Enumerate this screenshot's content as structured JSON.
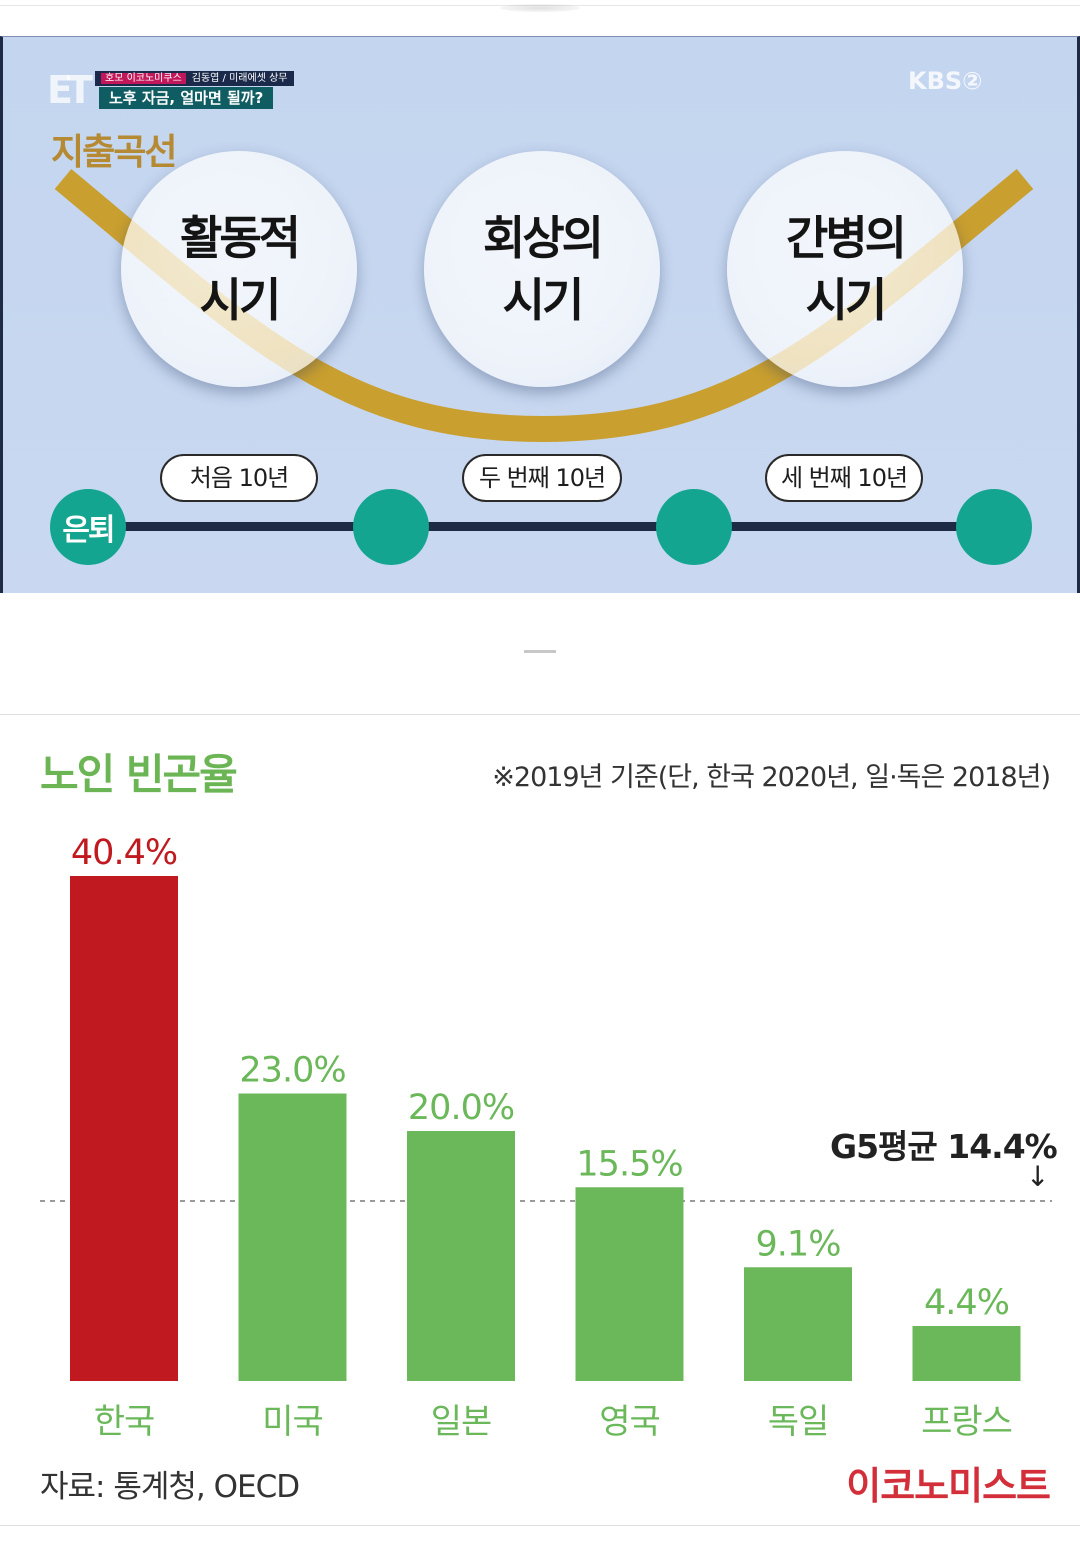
{
  "broadcast": {
    "caption_top_tag": "호모 이코노미쿠스",
    "caption_top_text": "김동엽 / 미래에셋 상무",
    "caption_main": "노후 자금, 얼마면 될까?",
    "channel_logo": "KBS②",
    "program_logo": "ET",
    "curve_title": "지출곡선",
    "phases": [
      {
        "line1": "활동적",
        "line2": "시기"
      },
      {
        "line1": "회상의",
        "line2": "시기"
      },
      {
        "line1": "간병의",
        "line2": "시기"
      }
    ],
    "timeline": {
      "start_label": "은퇴",
      "decades": [
        "처음 10년",
        "두 번째 10년",
        "세 번째 10년"
      ]
    },
    "colors": {
      "curve": "#c99a1e",
      "node": "#13a58f",
      "timeline": "#1e2b44"
    }
  },
  "chart": {
    "title": "노인 빈곤율",
    "note": "※2019년 기준(단, 한국 2020년, 일·독은 2018년)",
    "source": "자료: 통계청, OECD",
    "brand": "이코노미스트",
    "avg_label": "G5평균 14.4%",
    "avg_arrow": "↓"
  },
  "chart_data": {
    "type": "bar",
    "categories": [
      "한국",
      "미국",
      "일본",
      "영국",
      "독일",
      "프랑스"
    ],
    "values": [
      40.4,
      23.0,
      20.0,
      15.5,
      9.1,
      4.4
    ],
    "value_labels": [
      "40.4%",
      "23.0%",
      "20.0%",
      "15.5%",
      "9.1%",
      "4.4%"
    ],
    "unit": "%",
    "title": "노인 빈곤율",
    "reference_line": {
      "label": "G5평균 14.4%",
      "value": 14.4,
      "style": "dashed"
    },
    "highlight_index": 0,
    "colors": {
      "highlight": "#c01a20",
      "normal": "#6bb85a",
      "highlight_label": "#c01a20",
      "normal_label": "#6bb85a"
    },
    "grid": false
  }
}
